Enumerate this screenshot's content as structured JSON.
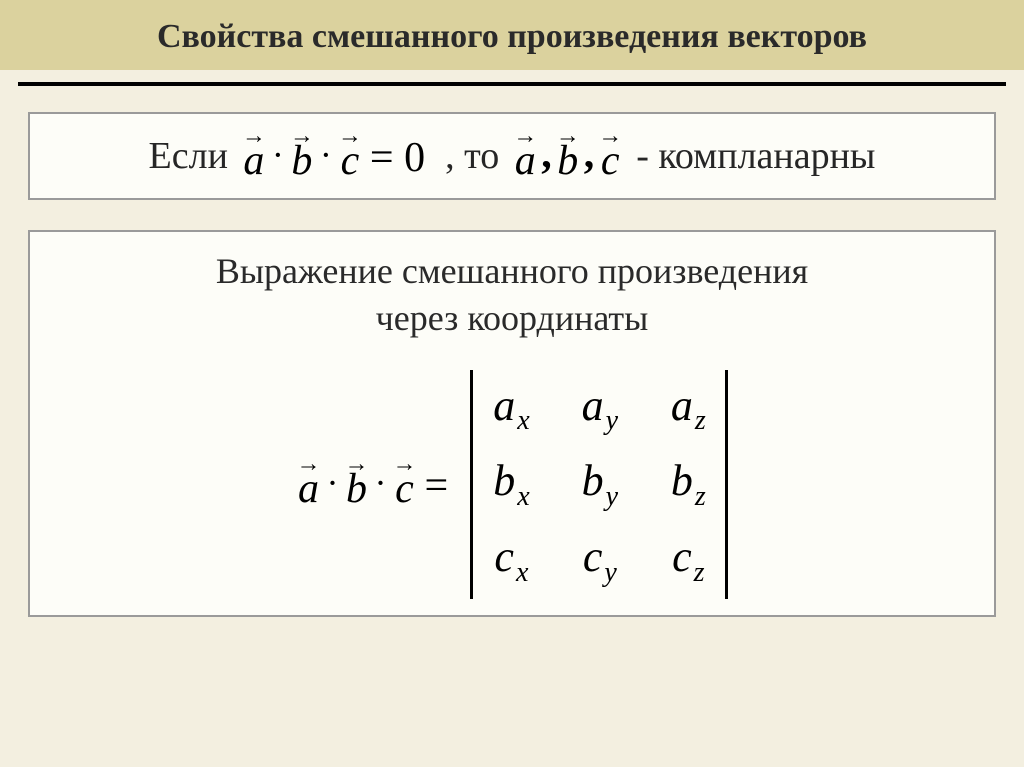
{
  "slide": {
    "background_color": "#f3efe0",
    "title_band_color": "#dbd29e",
    "divider_color": "#000000",
    "box_border_color": "#9a9a9a",
    "box_background": "#fdfdf8",
    "title": "Свойства смешанного произведения векторов",
    "title_fontsize": 34
  },
  "box1": {
    "text_if": "Если",
    "text_then": ", то",
    "text_coplanar": "- компланарны",
    "vectors": {
      "a": "a",
      "b": "b",
      "c": "c"
    },
    "eq_zero": "= 0",
    "fontsize": 38
  },
  "box2": {
    "title_line1": "Выражение смешанного произведения",
    "title_line2": "через координаты",
    "title_fontsize": 36,
    "vectors": {
      "a": "a",
      "b": "b",
      "c": "c"
    },
    "eq": "=",
    "determinant": {
      "rows": [
        {
          "base": "a",
          "subs": [
            "x",
            "y",
            "z"
          ]
        },
        {
          "base": "b",
          "subs": [
            "x",
            "y",
            "z"
          ]
        },
        {
          "base": "c",
          "subs": [
            "x",
            "y",
            "z"
          ]
        }
      ],
      "cell_fontsize": 44,
      "sub_fontsize": 28
    }
  }
}
